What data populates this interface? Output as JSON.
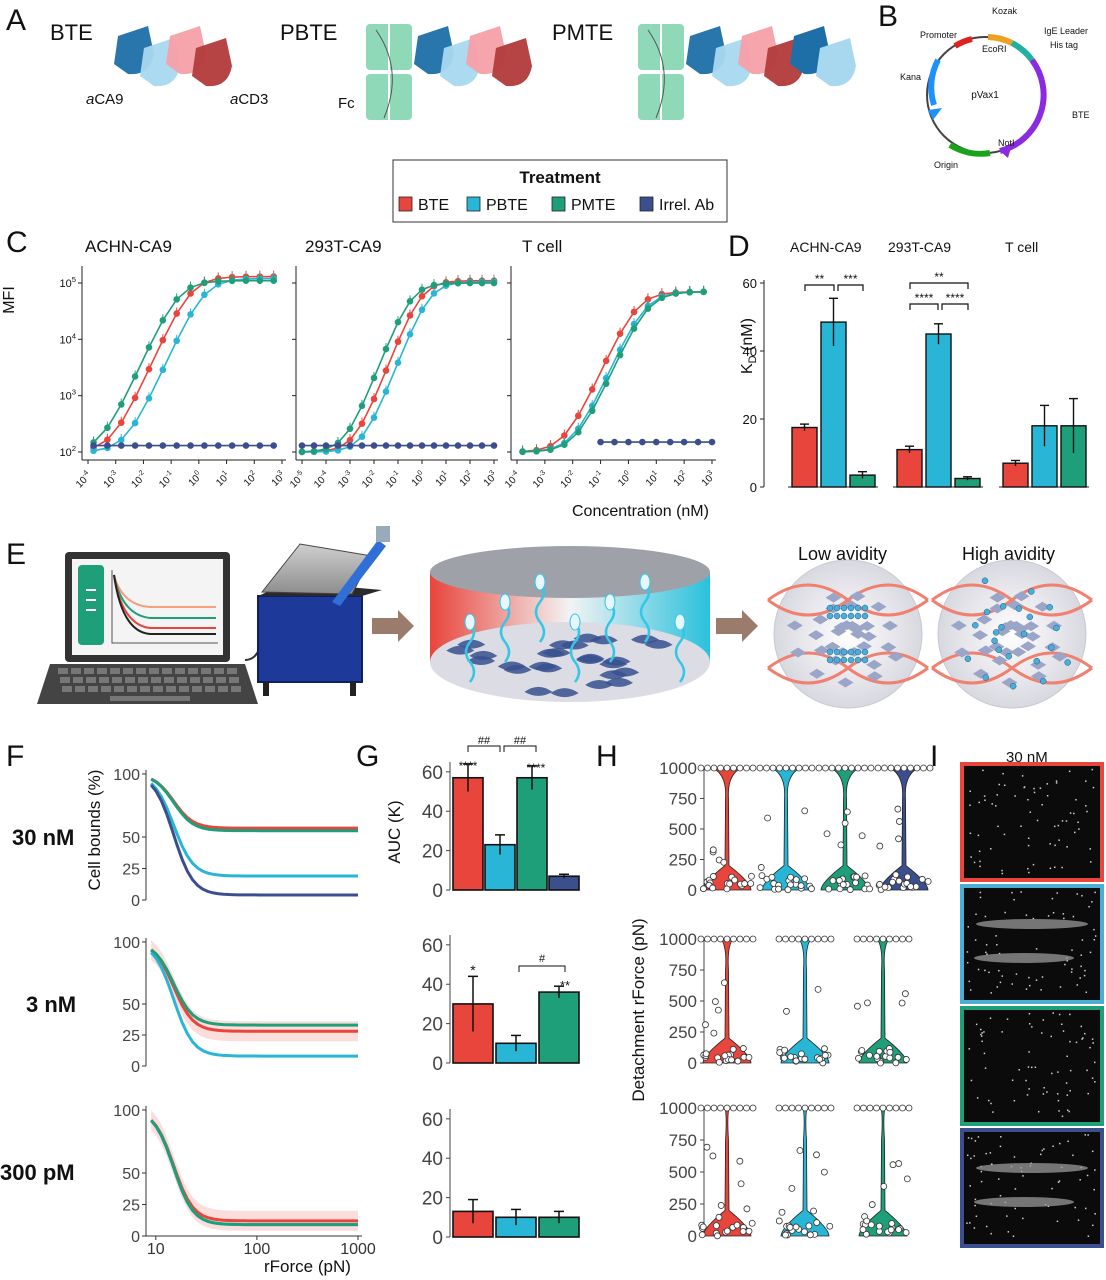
{
  "panels": {
    "A": {
      "label": "A",
      "constructs": [
        "BTE",
        "PBTE",
        "PMTE"
      ],
      "labels": {
        "aca9_italic": "a",
        "aca9": "CA9",
        "acd3_italic": "a",
        "acd3": "CD3",
        "fc": "Fc"
      }
    },
    "B": {
      "label": "B",
      "plasmid": "pVax1",
      "features": [
        "Promoter",
        "Kozak",
        "EcoRI",
        "IgE Leader",
        "His tag",
        "BTE",
        "NotI",
        "Origin",
        "Kana"
      ]
    },
    "legend": {
      "title": "Treatment",
      "items": [
        {
          "name": "BTE",
          "color": "#e8453c"
        },
        {
          "name": "PBTE",
          "color": "#29b6d6"
        },
        {
          "name": "PMTE",
          "color": "#1f9e7a"
        },
        {
          "name": "Irrel. Ab",
          "color": "#3b4f8f"
        }
      ]
    },
    "C": {
      "label": "C",
      "ylabel": "MFI",
      "xlabel": "Concentration (nM)",
      "subplots": [
        "ACHN-CA9",
        "293T-CA9",
        "T cell"
      ]
    },
    "D": {
      "label": "D",
      "ylabel_main": "K",
      "ylabel_sub": "D",
      "ylabel_unit": " (nM)",
      "groups": [
        "ACHN-CA9",
        "293T-CA9",
        "T cell"
      ],
      "sig": [
        "**",
        "***",
        "**",
        "****",
        "****"
      ]
    },
    "E": {
      "label": "E",
      "low": "Low avidity",
      "high": "High avidity"
    },
    "F": {
      "label": "F",
      "ylabel": "Cell bounds (%)",
      "xlabel": "rForce (pN)",
      "rows": [
        "30 nM",
        "3 nM",
        "300 pM"
      ]
    },
    "G": {
      "label": "G",
      "ylabel": "AUC (K)",
      "sig_row1": [
        "****",
        "****",
        "##",
        "##"
      ],
      "sig_row2": [
        "*",
        "**",
        "#"
      ]
    },
    "H": {
      "label": "H",
      "ylabel": "Detachment rForce (pN)"
    },
    "I": {
      "label": "I",
      "title": "30 nM"
    }
  },
  "chart_data": [
    {
      "id": "C-ACHN-CA9",
      "type": "line",
      "title": "ACHN-CA9",
      "ylabel": "MFI",
      "xlabel": "",
      "xscale": "log",
      "yscale": "log",
      "xlim": [
        0.0001,
        1000
      ],
      "ylim": [
        100,
        100000
      ],
      "x_ticks": [
        "10-4",
        "10-3",
        "10-2",
        "10-1",
        "100",
        "101",
        "102",
        "103"
      ],
      "y_ticks": [
        "102",
        "103",
        "104",
        "105"
      ],
      "series": [
        {
          "name": "BTE",
          "color": "#e8453c",
          "ec50": 0.5,
          "top": 130000
        },
        {
          "name": "PBTE",
          "color": "#29b6d6",
          "ec50": 1.5,
          "top": 120000
        },
        {
          "name": "PMTE",
          "color": "#1f9e7a",
          "ec50": 0.18,
          "top": 110000
        },
        {
          "name": "Irrel. Ab",
          "color": "#3b4f8f",
          "flat": 130
        }
      ]
    },
    {
      "id": "C-293T-CA9",
      "type": "line",
      "title": "293T-CA9",
      "xscale": "log",
      "yscale": "log",
      "xlim": [
        1e-05,
        1000
      ],
      "ylim": [
        100,
        100000
      ],
      "x_ticks": [
        "10-5",
        "10-4",
        "10-3",
        "10-2",
        "10-1",
        "100",
        "101",
        "102",
        "103"
      ],
      "series": [
        {
          "name": "BTE",
          "color": "#e8453c",
          "ec50": 0.9,
          "top": 110000
        },
        {
          "name": "PBTE",
          "color": "#29b6d6",
          "ec50": 2.0,
          "top": 105000
        },
        {
          "name": "PMTE",
          "color": "#1f9e7a",
          "ec50": 0.35,
          "top": 100000
        },
        {
          "name": "Irrel. Ab",
          "color": "#3b4f8f",
          "flat": 130
        }
      ]
    },
    {
      "id": "C-Tcell",
      "type": "line",
      "title": "T cell",
      "xlabel": "Concentration (nM)",
      "xscale": "log",
      "yscale": "log",
      "xlim": [
        0.0001,
        1000
      ],
      "ylim": [
        100,
        100000
      ],
      "x_ticks": [
        "10-4",
        "10-3",
        "10-2",
        "10-1",
        "100",
        "101",
        "102",
        "103"
      ],
      "series": [
        {
          "name": "BTE",
          "color": "#e8453c",
          "ec50": 2.0,
          "top": 70000
        },
        {
          "name": "PBTE",
          "color": "#29b6d6",
          "ec50": 4.0,
          "top": 70000
        },
        {
          "name": "PMTE",
          "color": "#1f9e7a",
          "ec50": 5.0,
          "top": 70000
        },
        {
          "name": "Irrel. Ab",
          "color": "#3b4f8f",
          "flat": 150,
          "from": 0.1
        }
      ]
    },
    {
      "id": "D",
      "type": "bar",
      "ylabel": "KD (nM)",
      "ylim": [
        0,
        60
      ],
      "y_ticks": [
        0,
        20,
        40,
        60
      ],
      "categories": [
        "ACHN-CA9",
        "293T-CA9",
        "T cell"
      ],
      "series": [
        {
          "name": "BTE",
          "color": "#e8453c",
          "values": [
            17.5,
            11,
            7
          ],
          "err": [
            1,
            1,
            0.8
          ]
        },
        {
          "name": "PBTE",
          "color": "#29b6d6",
          "values": [
            48.5,
            45,
            18
          ],
          "err": [
            7,
            3,
            6
          ]
        },
        {
          "name": "PMTE",
          "color": "#1f9e7a",
          "values": [
            3.5,
            2.5,
            18
          ],
          "err": [
            1,
            0.5,
            8
          ]
        }
      ]
    },
    {
      "id": "F-30nM",
      "type": "line",
      "ylabel": "Cell bounds (%)",
      "xscale": "log",
      "xlim": [
        8,
        1000
      ],
      "ylim": [
        0,
        100
      ],
      "y_ticks": [
        0,
        25,
        50,
        100
      ],
      "series": [
        {
          "name": "BTE",
          "color": "#e8453c",
          "plateau": 57
        },
        {
          "name": "PBTE",
          "color": "#29b6d6",
          "plateau": 19
        },
        {
          "name": "PMTE",
          "color": "#1f9e7a",
          "plateau": 55
        },
        {
          "name": "Irrel. Ab",
          "color": "#3b4f8f",
          "plateau": 4
        }
      ]
    },
    {
      "id": "F-3nM",
      "type": "line",
      "xscale": "log",
      "xlim": [
        8,
        1000
      ],
      "ylim": [
        0,
        100
      ],
      "y_ticks": [
        0,
        25,
        50,
        100
      ],
      "series": [
        {
          "name": "BTE",
          "color": "#e8453c",
          "plateau": 28
        },
        {
          "name": "PBTE",
          "color": "#29b6d6",
          "plateau": 8
        },
        {
          "name": "PMTE",
          "color": "#1f9e7a",
          "plateau": 33
        }
      ]
    },
    {
      "id": "F-300pM",
      "type": "line",
      "xlabel": "rForce (pN)",
      "xscale": "log",
      "xlim": [
        8,
        1000
      ],
      "ylim": [
        0,
        100
      ],
      "x_ticks": [
        "10",
        "100",
        "1000"
      ],
      "y_ticks": [
        0,
        25,
        50,
        100
      ],
      "series": [
        {
          "name": "BTE",
          "color": "#e8453c",
          "plateau": 12
        },
        {
          "name": "PBTE",
          "color": "#29b6d6",
          "plateau": 9
        },
        {
          "name": "PMTE",
          "color": "#1f9e7a",
          "plateau": 9
        }
      ]
    },
    {
      "id": "G-30nM",
      "type": "bar",
      "ylabel": "AUC (K)",
      "ylim": [
        0,
        65
      ],
      "y_ticks": [
        0,
        20,
        40,
        60
      ],
      "categories": [
        "BTE",
        "PBTE",
        "PMTE",
        "Irrel. Ab"
      ],
      "values": [
        57,
        23,
        57,
        7
      ],
      "err": [
        7,
        5,
        6,
        1
      ]
    },
    {
      "id": "G-3nM",
      "type": "bar",
      "ylim": [
        0,
        65
      ],
      "y_ticks": [
        0,
        20,
        40,
        60
      ],
      "categories": [
        "BTE",
        "PBTE",
        "PMTE"
      ],
      "values": [
        30,
        10,
        36
      ],
      "err": [
        14,
        4,
        3
      ]
    },
    {
      "id": "G-300pM",
      "type": "bar",
      "ylim": [
        0,
        65
      ],
      "y_ticks": [
        0,
        20,
        40,
        60
      ],
      "categories": [
        "BTE",
        "PBTE",
        "PMTE"
      ],
      "values": [
        13,
        10,
        10
      ],
      "err": [
        6,
        4,
        3
      ]
    },
    {
      "id": "H",
      "type": "scatter",
      "ylabel": "Detachment rForce (pN)",
      "ylim": [
        0,
        1000
      ],
      "y_ticks": [
        0,
        250,
        500,
        750,
        1000
      ]
    }
  ]
}
